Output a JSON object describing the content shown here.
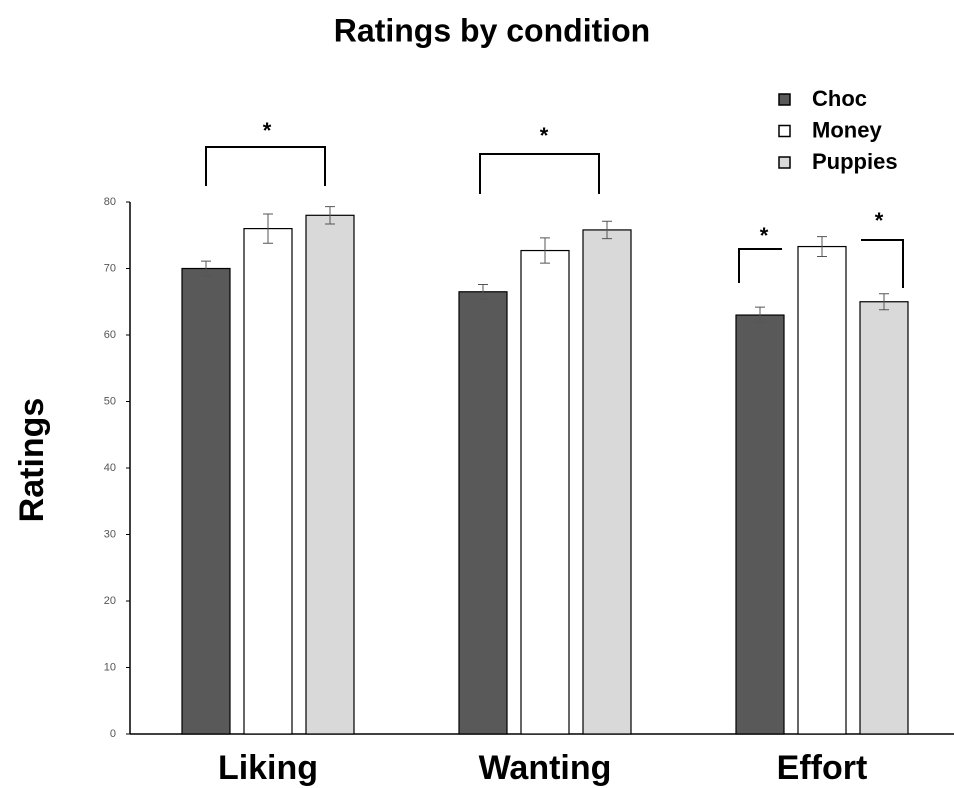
{
  "chart_data": {
    "type": "bar",
    "title": "Ratings by condition",
    "y_label": "Ratings",
    "categories": [
      "Liking",
      "Wanting",
      "Effort"
    ],
    "series": [
      {
        "name": "Choc",
        "color": "#595959",
        "values": [
          70,
          66.5,
          63
        ],
        "errors": [
          1.1,
          1.1,
          1.2
        ]
      },
      {
        "name": "Money",
        "color": "#ffffff",
        "values": [
          76,
          72.7,
          73.3
        ],
        "errors": [
          2.2,
          1.9,
          1.5
        ]
      },
      {
        "name": "Puppies",
        "color": "#d9d9d9",
        "values": [
          78,
          75.8,
          65
        ],
        "errors": [
          1.3,
          1.3,
          1.2
        ]
      }
    ],
    "ylim": [
      0,
      80
    ],
    "yticks": [
      0,
      10,
      20,
      30,
      40,
      50,
      60,
      70,
      80
    ],
    "legend": "top-right",
    "annotations": [
      "*",
      "*",
      "*",
      "*"
    ]
  }
}
